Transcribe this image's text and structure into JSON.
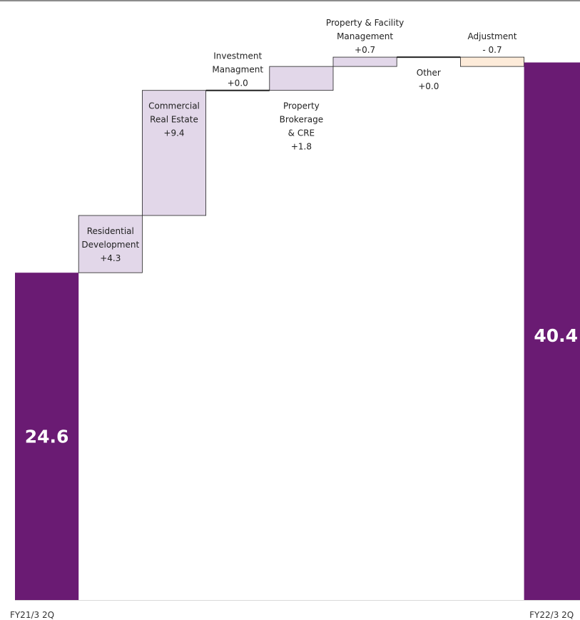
{
  "chart_data": {
    "type": "waterfall",
    "title": "",
    "start": {
      "label": "FY21/3 2Q",
      "value": 24.6,
      "display": "24.6"
    },
    "end": {
      "label": "FY22/3 2Q",
      "value": 40.4,
      "display": "40.4"
    },
    "steps": [
      {
        "lines": [
          "Residential",
          "Development",
          "+4.3"
        ],
        "value": 4.3,
        "kind": "increase"
      },
      {
        "lines": [
          "Commercial",
          "Real Estate",
          "+9.4"
        ],
        "value": 9.4,
        "kind": "increase"
      },
      {
        "lines": [
          "Investment",
          "Managment",
          "+0.0"
        ],
        "value": 0.0,
        "kind": "zero"
      },
      {
        "lines": [
          "Property",
          "Brokerage",
          "& CRE",
          "+1.8"
        ],
        "value": 1.8,
        "kind": "increase"
      },
      {
        "lines": [
          "Property & Facility",
          "Management",
          "+0.7"
        ],
        "value": 0.7,
        "kind": "increase"
      },
      {
        "lines": [
          "Other",
          "+0.0"
        ],
        "value": 0.0,
        "kind": "zero"
      },
      {
        "lines": [
          "Adjustment",
          "- 0.7"
        ],
        "value": -0.7,
        "kind": "decrease"
      }
    ],
    "ylim": [
      0,
      45
    ],
    "grid": false,
    "legend": "none"
  },
  "colors": {
    "total": "#6a1b73",
    "increase": "#e2d7e9",
    "decrease": "#fdebd9",
    "outline": "#222222"
  }
}
